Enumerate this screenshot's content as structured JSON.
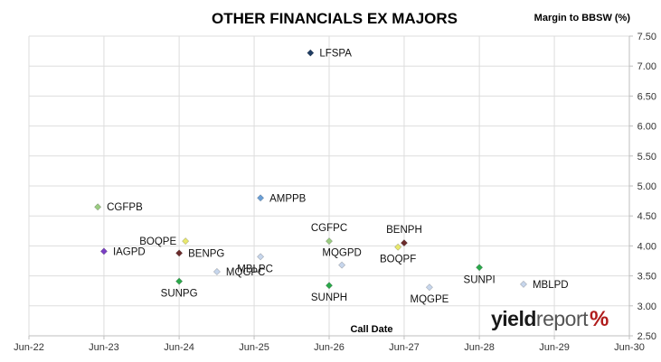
{
  "chart_data": {
    "type": "scatter",
    "title": "OTHER FINANCIALS EX MAJORS",
    "ylabel": "Margin to BBSW (%)",
    "xlabel": "Call Date",
    "ylim": [
      2.5,
      7.5
    ],
    "yticks": [
      2.5,
      3.0,
      3.5,
      4.0,
      4.5,
      5.0,
      5.5,
      6.0,
      6.5,
      7.0,
      7.5
    ],
    "ytick_labels": [
      "2.50",
      "3.00",
      "3.50",
      "4.00",
      "4.50",
      "5.00",
      "5.50",
      "6.00",
      "6.50",
      "7.00",
      "7.50"
    ],
    "xlim": [
      "2022-06-30",
      "2030-06-30"
    ],
    "xticks": [
      "2022-06-30",
      "2023-06-30",
      "2024-06-30",
      "2025-06-30",
      "2026-06-30",
      "2027-06-30",
      "2028-06-30",
      "2029-06-30",
      "2030-06-30"
    ],
    "xtick_labels": [
      "Jun-22",
      "Jun-23",
      "Jun-24",
      "Jun-25",
      "Jun-26",
      "Jun-27",
      "Jun-28",
      "Jun-29",
      "Jun-30"
    ],
    "grid": true,
    "points": [
      {
        "label": "LFSPA",
        "x": "2026-03-31",
        "y": 7.22,
        "color": "#1f3d63",
        "label_pos": "right"
      },
      {
        "label": "CGFPB",
        "x": "2023-05-31",
        "y": 4.65,
        "color": "#9bcc82",
        "label_pos": "right"
      },
      {
        "label": "AMPPB",
        "x": "2025-07-31",
        "y": 4.8,
        "color": "#6a9fd6",
        "label_pos": "right"
      },
      {
        "label": "CGFPC",
        "x": "2026-06-30",
        "y": 4.08,
        "color": "#9bcc82",
        "label_pos": "above"
      },
      {
        "label": "BENPH",
        "x": "2027-06-30",
        "y": 4.05,
        "color": "#6b2b2b",
        "label_pos": "above"
      },
      {
        "label": "BOQPF",
        "x": "2027-05-31",
        "y": 3.98,
        "color": "#e8e86e",
        "label_pos": "below"
      },
      {
        "label": "BOQPE",
        "x": "2024-07-31",
        "y": 4.08,
        "color": "#e8e86e",
        "label_pos": "left"
      },
      {
        "label": "IAGPD",
        "x": "2023-06-30",
        "y": 3.91,
        "color": "#7a3fc4",
        "label_pos": "right"
      },
      {
        "label": "BENPG",
        "x": "2024-06-30",
        "y": 3.88,
        "color": "#6b2b2b",
        "label_pos": "right"
      },
      {
        "label": "MQGPC",
        "x": "2024-12-31",
        "y": 3.57,
        "color": "#c7d6ec",
        "label_pos": "right"
      },
      {
        "label": "MBLPC",
        "x": "2025-07-31",
        "y": 3.82,
        "color": "#c7d6ec",
        "label_pos": "below-left"
      },
      {
        "label": "MQGPD",
        "x": "2026-08-31",
        "y": 3.68,
        "color": "#c7d6ec",
        "label_pos": "above-left"
      },
      {
        "label": "SUNPG",
        "x": "2024-06-30",
        "y": 3.41,
        "color": "#2aa84a",
        "label_pos": "below"
      },
      {
        "label": "SUNPH",
        "x": "2026-06-30",
        "y": 3.34,
        "color": "#2aa84a",
        "label_pos": "below"
      },
      {
        "label": "MQGPE",
        "x": "2027-10-31",
        "y": 3.31,
        "color": "#c7d6ec",
        "label_pos": "below"
      },
      {
        "label": "SUNPI",
        "x": "2028-06-30",
        "y": 3.64,
        "color": "#2aa84a",
        "label_pos": "below"
      },
      {
        "label": "MBLPD",
        "x": "2029-01-31",
        "y": 3.36,
        "color": "#c7d6ec",
        "label_pos": "right"
      }
    ]
  },
  "logo": {
    "yield": "yield",
    "report": "report",
    "pct": "%"
  }
}
